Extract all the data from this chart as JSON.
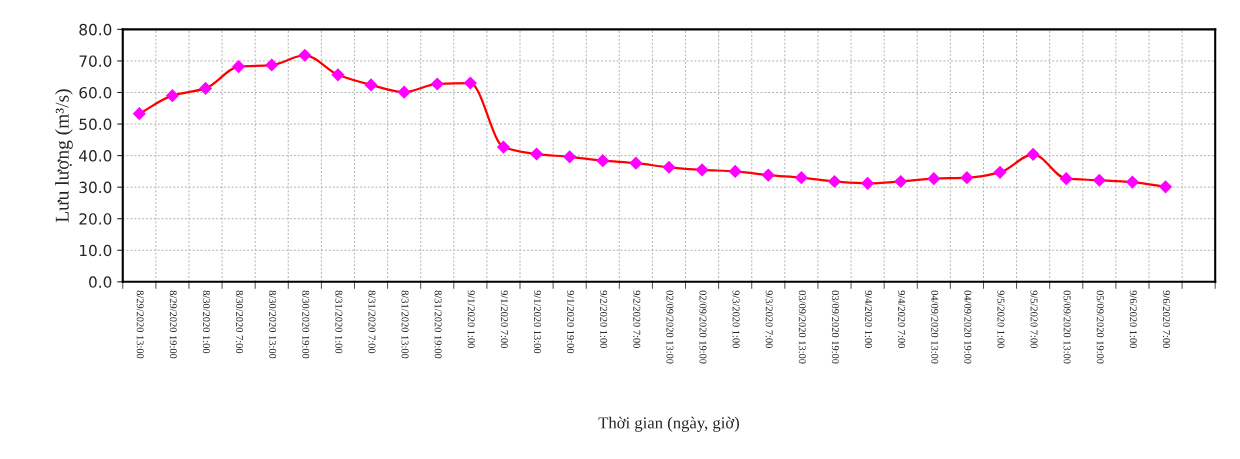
{
  "chart_data": {
    "type": "line",
    "xlabel": "Thời gian (ngày, giờ)",
    "ylabel": "Lưu lượng (m³/s)",
    "categories": [
      "8/29/2020 13:00",
      "8/29/2020 19:00",
      "8/30/2020 1:00",
      "8/30/2020 7:00",
      "8/30/2020 13:00",
      "8/30/2020 19:00",
      "8/31/2020 1:00",
      "8/31/2020 7:00",
      "8/31/2020 13:00",
      "8/31/2020 19:00",
      "9/1/2020 1:00",
      "9/1/2020 7:00",
      "9/1/2020 13:00",
      "9/1/2020 19:00",
      "9/2/2020 1:00",
      "9/2/2020 7:00",
      "02/09/2020 13:00",
      "02/09/2020 19:00",
      "9/3/2020 1:00",
      "9/3/2020 7:00",
      "03/09/2020 13:00",
      "03/09/2020 19:00",
      "9/4/2020 1:00",
      "9/4/2020 7:00",
      "04/09/2020 13:00",
      "04/09/2020 19:00",
      "9/5/2020 1:00",
      "9/5/2020 7:00",
      "05/09/2020 13:00",
      "05/09/2020 19:00",
      "9/6/2020 1:00",
      "9/6/2020 7:00",
      null
    ],
    "series": [
      {
        "color": "#ff0000",
        "colors": [
          "#ff00ff",
          "#ff00ff",
          "#ff00ff",
          "#ff00ff",
          "#ff00ff",
          "#ff00ff",
          "#ff00ff",
          "#ff00ff",
          "#ff00ff",
          "#ff00ff",
          "#ff00ff",
          "#ff00ff",
          "#ff00ff",
          "#ff00ff",
          "#ff00ff",
          "#ff00ff",
          "#ff00ff",
          "#ff00ff",
          "#ff00ff",
          "#ff00ff",
          "#ff00ff",
          "#ff00ff",
          "#ff00ff",
          "#ff00ff",
          "#ff00ff",
          "#ff00ff",
          "#ff00ff",
          "#ff00ff",
          "#ff00ff",
          "#ff00ff",
          "#ff00ff",
          "#ff00ff",
          null
        ],
        "values": [
          53.3,
          59.0,
          61.3,
          68.2,
          68.7,
          71.8,
          65.6,
          62.4,
          60.1,
          62.7,
          63.0,
          42.7,
          40.5,
          39.6,
          38.4,
          37.6,
          36.3,
          35.5,
          35.0,
          33.8,
          33.0,
          31.8,
          31.2,
          31.8,
          32.7,
          33.0,
          34.7,
          40.4,
          32.7,
          32.2,
          31.6,
          30.1,
          null
        ]
      }
    ],
    "ylim": [
      0,
      80
    ],
    "yticks": [
      {
        "value": 0,
        "label": "0.0"
      },
      {
        "value": 10,
        "label": "10.0"
      },
      {
        "value": 20,
        "label": "20.0"
      },
      {
        "value": 30,
        "label": "30.0"
      },
      {
        "value": 40,
        "label": "40.0"
      },
      {
        "value": 50,
        "label": "50.0"
      },
      {
        "value": 60,
        "label": "60.0"
      },
      {
        "value": 70,
        "label": "70.0"
      },
      {
        "value": 80,
        "label": "80.0"
      }
    ],
    "grid": true,
    "marker": "diamond",
    "line_style": "solid",
    "legend": false
  }
}
